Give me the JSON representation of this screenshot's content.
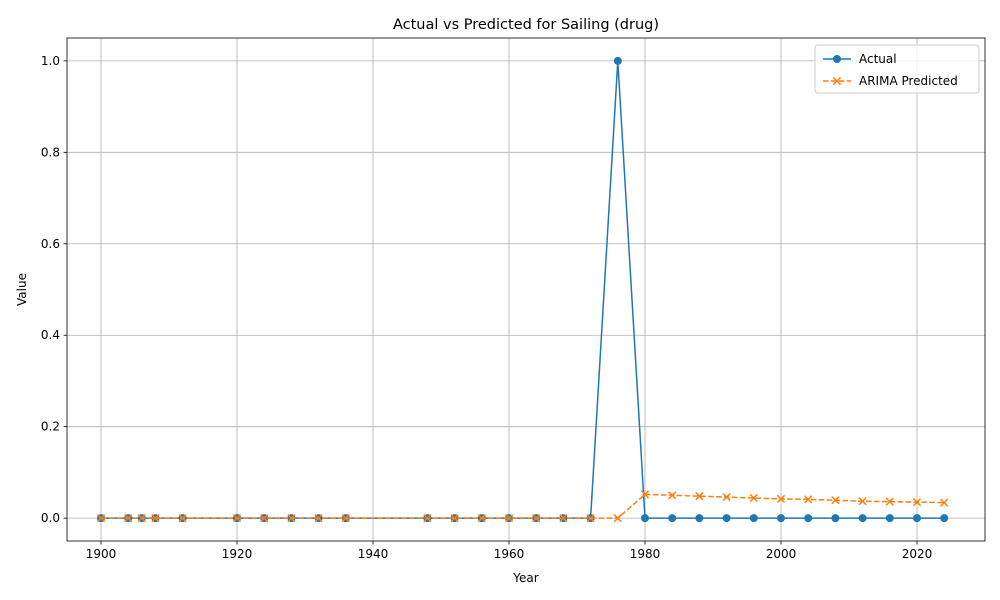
{
  "chart_data": {
    "type": "line",
    "title": "Actual vs Predicted for Sailing (drug)",
    "xlabel": "Year",
    "ylabel": "Value",
    "xlim": [
      1895,
      2030
    ],
    "ylim": [
      -0.05,
      1.05
    ],
    "xticks": [
      1900,
      1920,
      1940,
      1960,
      1980,
      2000,
      2020
    ],
    "yticks": [
      0.0,
      0.2,
      0.4,
      0.6,
      0.8,
      1.0
    ],
    "ytick_labels": [
      "0.0",
      "0.2",
      "0.4",
      "0.6",
      "0.8",
      "1.0"
    ],
    "grid": true,
    "legend_position": "top-right",
    "x": [
      1900,
      1904,
      1906,
      1908,
      1912,
      1920,
      1924,
      1928,
      1932,
      1936,
      1948,
      1952,
      1956,
      1960,
      1964,
      1968,
      1972,
      1976,
      1980,
      1984,
      1988,
      1992,
      1996,
      2000,
      2004,
      2008,
      2012,
      2016,
      2020,
      2024
    ],
    "series": [
      {
        "name": "Actual",
        "color": "#1f77b4",
        "line_style": "solid",
        "marker": "circle",
        "values": [
          0,
          0,
          0,
          0,
          0,
          0,
          0,
          0,
          0,
          0,
          0,
          0,
          0,
          0,
          0,
          0,
          0,
          1.0,
          0,
          0,
          0,
          0,
          0,
          0,
          0,
          0,
          0,
          0,
          0,
          0
        ]
      },
      {
        "name": "ARIMA Predicted",
        "color": "#ff7f0e",
        "line_style": "dashed",
        "marker": "x",
        "values": [
          0,
          0,
          0,
          0,
          0,
          0,
          0,
          0,
          0,
          0,
          0,
          0,
          0,
          0,
          0,
          0,
          0,
          0,
          0.052,
          0.05,
          0.048,
          0.046,
          0.044,
          0.042,
          0.041,
          0.039,
          0.037,
          0.036,
          0.035,
          0.034
        ]
      }
    ]
  }
}
